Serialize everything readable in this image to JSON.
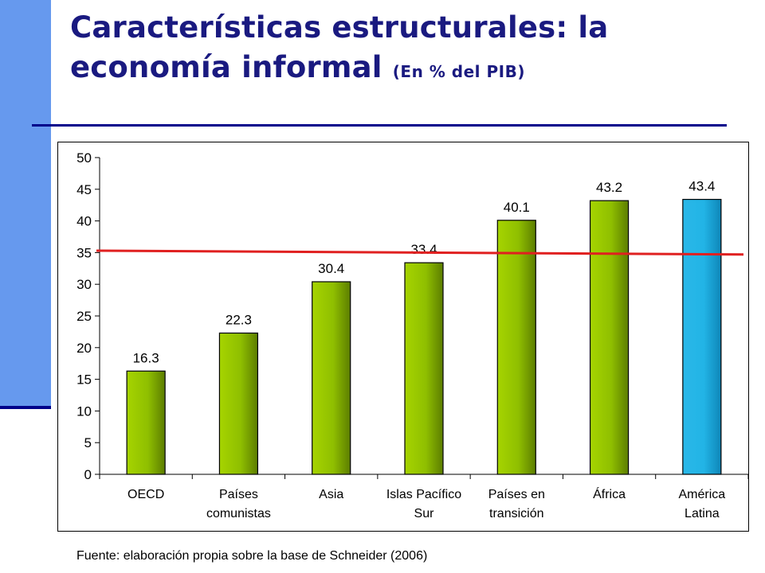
{
  "title": {
    "main": "Características estructurales: la economía informal",
    "sub": "(En % del PIB)"
  },
  "source": "Fuente: elaboración propia sobre la base de Schneider (2006)",
  "chart_data": {
    "type": "bar",
    "categories": [
      [
        "OECD"
      ],
      [
        "Países",
        "comunistas"
      ],
      [
        "Asia"
      ],
      [
        "Islas Pacífico",
        "Sur"
      ],
      [
        "Países en",
        "transición"
      ],
      [
        "África"
      ],
      [
        "América",
        "Latina"
      ]
    ],
    "values": [
      16.3,
      22.3,
      30.4,
      33.4,
      40.1,
      43.2,
      43.4
    ],
    "value_labels": [
      "16.3",
      "22.3",
      "30.4",
      "33.4",
      "40.1",
      "43.2",
      "43.4"
    ],
    "ylim": [
      0,
      50
    ],
    "yticks": [
      "0",
      "5",
      "10",
      "15",
      "20",
      "25",
      "30",
      "35",
      "40",
      "45",
      "50"
    ],
    "ytick_values": [
      0,
      5,
      10,
      15,
      20,
      25,
      30,
      35,
      40,
      45,
      50
    ],
    "reference_line": {
      "start": 35.3,
      "end": 34.7,
      "color": "#e02020"
    },
    "bar_color": "#8fbf00",
    "highlight_color": "#22b4e6",
    "highlight_index": 6,
    "grid": false,
    "legend": "none"
  }
}
